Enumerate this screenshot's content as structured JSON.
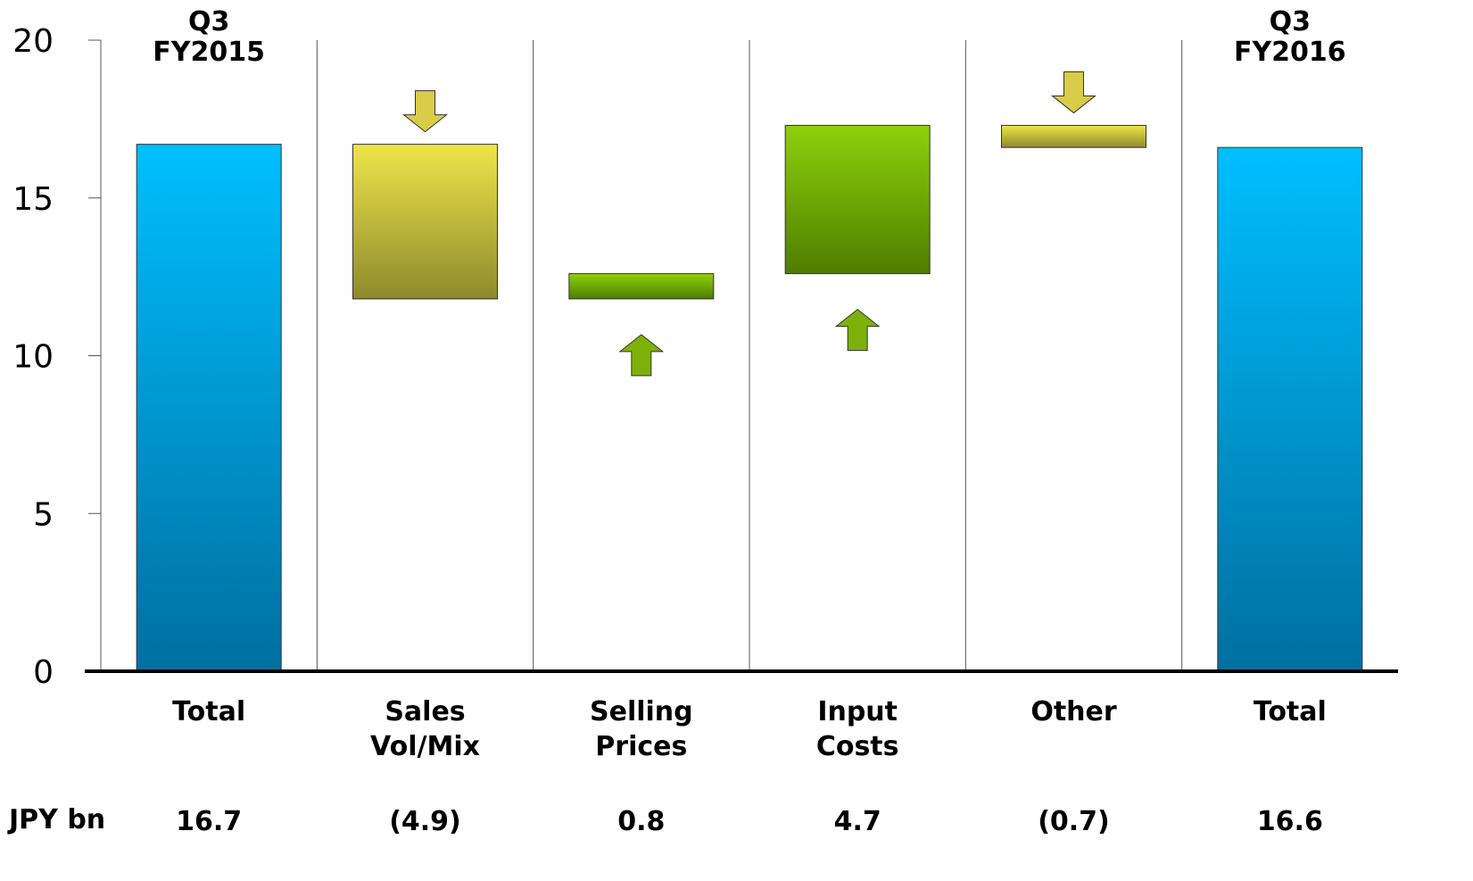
{
  "chart_data": {
    "type": "bar",
    "subtype": "waterfall",
    "ylim": [
      0,
      20
    ],
    "yticks": [
      0,
      5,
      10,
      15,
      20
    ],
    "grid": "vertical separators between categories",
    "unit_label": "JPY bn",
    "columns": [
      {
        "label": [
          "Total"
        ],
        "header": [
          "Q3",
          "FY2015"
        ],
        "kind": "total",
        "start": 0,
        "end": 16.7,
        "value_label": "16.7",
        "fill": "blue"
      },
      {
        "label": [
          "Sales",
          "Vol/Mix"
        ],
        "kind": "delta",
        "start": 16.7,
        "end": 11.8,
        "value_label": "(4.9)",
        "fill": "yellow",
        "arrow": "down"
      },
      {
        "label": [
          "Selling",
          "Prices"
        ],
        "kind": "delta",
        "start": 11.8,
        "end": 12.6,
        "value_label": "0.8",
        "fill": "green",
        "arrow": "up"
      },
      {
        "label": [
          "Input",
          "Costs"
        ],
        "kind": "delta",
        "start": 12.6,
        "end": 17.3,
        "value_label": "4.7",
        "fill": "green",
        "arrow": "up"
      },
      {
        "label": [
          "Other"
        ],
        "kind": "delta",
        "start": 17.3,
        "end": 16.6,
        "value_label": "(0.7)",
        "fill": "yellow",
        "arrow": "down"
      },
      {
        "label": [
          "Total"
        ],
        "header": [
          "Q3",
          "FY2016"
        ],
        "kind": "total",
        "start": 0,
        "end": 16.6,
        "value_label": "16.6",
        "fill": "blue"
      }
    ]
  },
  "colors": {
    "blue_top": "#00BFFF",
    "blue_bottom": "#006FA0",
    "yellow_top": "#EEE54A",
    "yellow_bottom": "#8E8A2C",
    "green_top": "#8DD10C",
    "green_bottom": "#4F7D00",
    "arrow_yellow": "#D9CC48",
    "arrow_green": "#7DB10A",
    "axis": "#000000"
  }
}
